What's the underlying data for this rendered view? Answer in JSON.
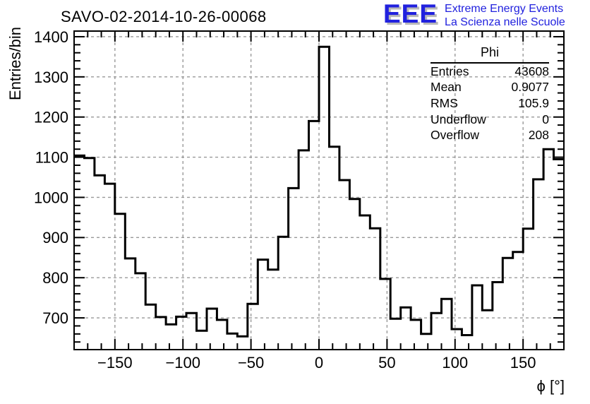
{
  "title": "SAVO-02-2014-10-26-00068",
  "logo": {
    "acronym": "EEE",
    "line1": "Extreme Energy Events",
    "line2": "La Scienza nelle Scuole",
    "color": "#2121de",
    "shadow_color": "#b9b9b9"
  },
  "stats": {
    "title": "Phi",
    "rows": [
      {
        "label": "Entries",
        "value": "43608"
      },
      {
        "label": "Mean",
        "value": "0.9077"
      },
      {
        "label": "RMS",
        "value": "105.9"
      },
      {
        "label": "Underflow",
        "value": "0"
      },
      {
        "label": "Overflow",
        "value": "208"
      }
    ]
  },
  "colors": {
    "line": "#000000",
    "frame": "#000000",
    "grid": "#999999",
    "background": "#ffffff"
  },
  "chart_data": {
    "type": "bar",
    "style": "histogram-step-outline",
    "title": "SAVO-02-2014-10-26-00068",
    "xlabel": "ϕ [°]",
    "ylabel": "Entries/bin",
    "xlim": [
      -180,
      180
    ],
    "ylim": [
      621,
      1414
    ],
    "grid": true,
    "x_ticks_major": [
      -150,
      -100,
      -50,
      0,
      50,
      100,
      150
    ],
    "x_minor_step": 10,
    "y_ticks_major": [
      700,
      800,
      900,
      1000,
      1100,
      1200,
      1300,
      1400
    ],
    "y_minor_step": 20,
    "bin_start": -180,
    "bin_width": 7.5,
    "n_bins": 48,
    "values": [
      1104,
      1098,
      1055,
      1034,
      959,
      848,
      811,
      733,
      702,
      684,
      703,
      712,
      668,
      723,
      695,
      661,
      654,
      735,
      845,
      820,
      902,
      1023,
      1117,
      1190,
      1375,
      1126,
      1043,
      996,
      955,
      923,
      797,
      698,
      726,
      695,
      660,
      712,
      747,
      672,
      657,
      781,
      719,
      789,
      849,
      864,
      922,
      1045,
      1120,
      1095
    ]
  }
}
